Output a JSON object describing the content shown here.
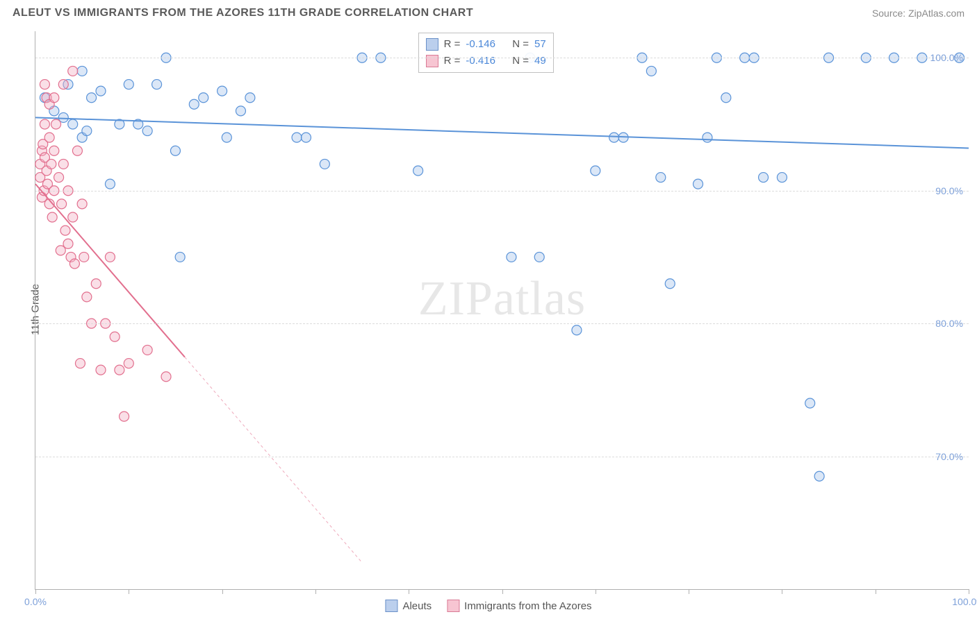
{
  "title": "ALEUT VS IMMIGRANTS FROM THE AZORES 11TH GRADE CORRELATION CHART",
  "source": "Source: ZipAtlas.com",
  "watermark": {
    "part1": "ZIP",
    "part2": "atlas"
  },
  "y_axis_title": "11th Grade",
  "chart": {
    "type": "scatter-with-regression",
    "background_color": "#ffffff",
    "grid_color": "#dcdcdc",
    "grid_style": "dashed",
    "axis_color": "#b0b0b0",
    "tick_label_color": "#7da0d9",
    "xlim": [
      0,
      100
    ],
    "ylim": [
      60,
      102
    ],
    "x_ticks": [
      0,
      10,
      20,
      30,
      40,
      50,
      60,
      70,
      80,
      90,
      100
    ],
    "x_tick_labels": {
      "0": "0.0%",
      "100": "100.0%"
    },
    "y_ticks": [
      70,
      80,
      90,
      100
    ],
    "y_tick_labels": {
      "70": "70.0%",
      "80": "80.0%",
      "90": "90.0%",
      "100": "100.0%"
    },
    "marker_radius": 7,
    "marker_fill_opacity": 0.4,
    "line_width": 2,
    "series": [
      {
        "name": "Aleuts",
        "color": "#5a93d8",
        "fill": "#a6c4ea",
        "stats": {
          "R": "-0.146",
          "N": "57"
        },
        "regression": {
          "x1": 0,
          "y1": 95.5,
          "x2": 100,
          "y2": 93.2,
          "solid_until_x": 100
        },
        "points": [
          [
            1,
            97
          ],
          [
            2,
            96
          ],
          [
            3,
            95.5
          ],
          [
            3.5,
            98
          ],
          [
            4,
            95
          ],
          [
            5,
            99
          ],
          [
            5,
            94
          ],
          [
            5.5,
            94.5
          ],
          [
            6,
            97
          ],
          [
            7,
            97.5
          ],
          [
            8,
            90.5
          ],
          [
            9,
            95
          ],
          [
            10,
            98
          ],
          [
            11,
            95
          ],
          [
            12,
            94.5
          ],
          [
            13,
            98
          ],
          [
            14,
            100
          ],
          [
            15,
            93
          ],
          [
            15.5,
            85
          ],
          [
            17,
            96.5
          ],
          [
            18,
            97
          ],
          [
            20,
            97.5
          ],
          [
            20.5,
            94
          ],
          [
            22,
            96
          ],
          [
            23,
            97
          ],
          [
            28,
            94
          ],
          [
            29,
            94
          ],
          [
            31,
            92
          ],
          [
            35,
            100
          ],
          [
            37,
            100
          ],
          [
            41,
            91.5
          ],
          [
            51,
            85
          ],
          [
            53,
            100
          ],
          [
            54,
            85
          ],
          [
            58,
            79.5
          ],
          [
            60,
            91.5
          ],
          [
            62,
            94
          ],
          [
            63,
            94
          ],
          [
            65,
            100
          ],
          [
            66,
            99
          ],
          [
            67,
            91
          ],
          [
            68,
            83
          ],
          [
            71,
            90.5
          ],
          [
            72,
            94
          ],
          [
            73,
            100
          ],
          [
            74,
            97
          ],
          [
            76,
            100
          ],
          [
            77,
            100
          ],
          [
            78,
            91
          ],
          [
            80,
            91
          ],
          [
            83,
            74
          ],
          [
            84,
            68.5
          ],
          [
            85,
            100
          ],
          [
            89,
            100
          ],
          [
            92,
            100
          ],
          [
            95,
            100
          ],
          [
            99,
            100
          ]
        ]
      },
      {
        "name": "Immigrants from the Azores",
        "color": "#e26f8e",
        "fill": "#f2b0c2",
        "stats": {
          "R": "-0.416",
          "N": "49"
        },
        "regression": {
          "x1": 0,
          "y1": 90.5,
          "x2": 35,
          "y2": 62,
          "solid_until_x": 16
        },
        "points": [
          [
            0.5,
            91
          ],
          [
            0.5,
            92
          ],
          [
            0.7,
            93
          ],
          [
            0.7,
            89.5
          ],
          [
            0.8,
            93.5
          ],
          [
            0.9,
            90
          ],
          [
            1,
            98
          ],
          [
            1,
            95
          ],
          [
            1,
            92.5
          ],
          [
            1.2,
            97
          ],
          [
            1.2,
            91.5
          ],
          [
            1.3,
            90.5
          ],
          [
            1.5,
            96.5
          ],
          [
            1.5,
            94
          ],
          [
            1.5,
            89
          ],
          [
            1.7,
            92
          ],
          [
            1.8,
            88
          ],
          [
            2,
            97
          ],
          [
            2,
            93
          ],
          [
            2,
            90
          ],
          [
            2.2,
            95
          ],
          [
            2.5,
            91
          ],
          [
            2.7,
            85.5
          ],
          [
            2.8,
            89
          ],
          [
            3,
            98
          ],
          [
            3,
            92
          ],
          [
            3.2,
            87
          ],
          [
            3.5,
            86
          ],
          [
            3.5,
            90
          ],
          [
            3.8,
            85
          ],
          [
            4,
            99
          ],
          [
            4,
            88
          ],
          [
            4.2,
            84.5
          ],
          [
            4.5,
            93
          ],
          [
            4.8,
            77
          ],
          [
            5,
            89
          ],
          [
            5.2,
            85
          ],
          [
            5.5,
            82
          ],
          [
            6,
            80
          ],
          [
            6.5,
            83
          ],
          [
            7,
            76.5
          ],
          [
            7.5,
            80
          ],
          [
            8,
            85
          ],
          [
            8.5,
            79
          ],
          [
            9,
            76.5
          ],
          [
            9.5,
            73
          ],
          [
            10,
            77
          ],
          [
            12,
            78
          ],
          [
            14,
            76
          ]
        ]
      }
    ]
  },
  "legend": {
    "series1": "Aleuts",
    "series2": "Immigrants from the Azores"
  },
  "stats_labels": {
    "R": "R =",
    "N": "N ="
  }
}
